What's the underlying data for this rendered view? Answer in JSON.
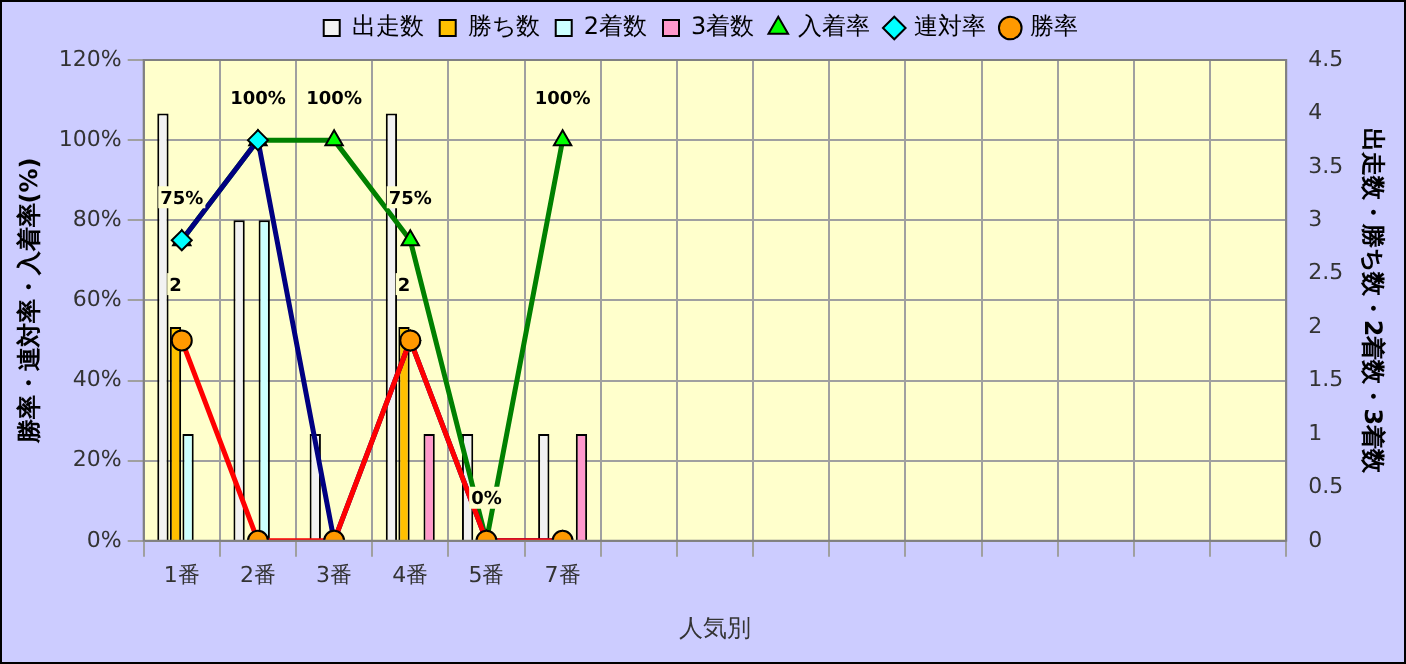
{
  "chart_data": {
    "type": "bar",
    "xlabel": "人気別",
    "ylabel": "勝率・連対率・入着率(%)",
    "y2label": "出走数・勝ち数・2着数・3着数",
    "categories": [
      "1番",
      "2番",
      "3番",
      "4番",
      "5番",
      "7番",
      null,
      null,
      null,
      null,
      null,
      null,
      null,
      null,
      null
    ],
    "series": [
      {
        "name": "出走数",
        "axis": "y2",
        "color": "#f2f2f2",
        "values": [
          4,
          3,
          1,
          4,
          1,
          1,
          null,
          null,
          null,
          null,
          null,
          null,
          null,
          null,
          null
        ]
      },
      {
        "name": "勝ち数",
        "axis": "y2",
        "color": "#ffc000",
        "values": [
          2,
          0,
          0,
          2,
          0,
          0,
          null,
          null,
          null,
          null,
          null,
          null,
          null,
          null,
          null
        ],
        "value_labels": [
          "2",
          null,
          null,
          "2",
          null,
          null,
          null,
          null,
          null,
          null,
          null,
          null,
          null,
          null,
          null
        ]
      },
      {
        "name": "2着数",
        "axis": "y2",
        "color": "#ccffff",
        "values": [
          1,
          3,
          0,
          0,
          0,
          0,
          null,
          null,
          null,
          null,
          null,
          null,
          null,
          null,
          null
        ]
      },
      {
        "name": "3着数",
        "axis": "y2",
        "color": "#ff99cc",
        "values": [
          0,
          0,
          0,
          1,
          0,
          1,
          null,
          null,
          null,
          null,
          null,
          null,
          null,
          null,
          null
        ]
      },
      {
        "name": "入着率",
        "type": "line",
        "marker": "triangle",
        "color": "#008000",
        "values": [
          75,
          100,
          100,
          75,
          0,
          100,
          null,
          null,
          null,
          null,
          null,
          null,
          null,
          null,
          null
        ],
        "value_labels": [
          "75%",
          "100%",
          "100%",
          "75%",
          "0%",
          "100%",
          null,
          null,
          null,
          null,
          null,
          null,
          null,
          null,
          null
        ]
      },
      {
        "name": "連対率",
        "type": "line",
        "marker": "diamond",
        "color": "#000080",
        "values": [
          75,
          100,
          0,
          50,
          0,
          0,
          null,
          null,
          null,
          null,
          null,
          null,
          null,
          null,
          null
        ]
      },
      {
        "name": "勝率",
        "type": "line",
        "marker": "circle",
        "color": "#ff0000",
        "values": [
          50,
          0,
          0,
          50,
          0,
          0,
          null,
          null,
          null,
          null,
          null,
          null,
          null,
          null,
          null
        ]
      }
    ],
    "ylim": [
      0,
      120
    ],
    "yticks": [
      {
        "value": 0,
        "label": "0%"
      },
      {
        "value": 20,
        "label": "20%"
      },
      {
        "value": 40,
        "label": "40%"
      },
      {
        "value": 60,
        "label": "60%"
      },
      {
        "value": 80,
        "label": "80%"
      },
      {
        "value": 100,
        "label": "100%"
      },
      {
        "value": 120,
        "label": "120%"
      }
    ],
    "y2lim": [
      0,
      4.5
    ],
    "y2ticks": [
      0,
      0.5,
      1,
      1.5,
      2,
      2.5,
      3,
      3.5,
      4,
      4.5
    ],
    "grid": true,
    "legend": "top"
  }
}
